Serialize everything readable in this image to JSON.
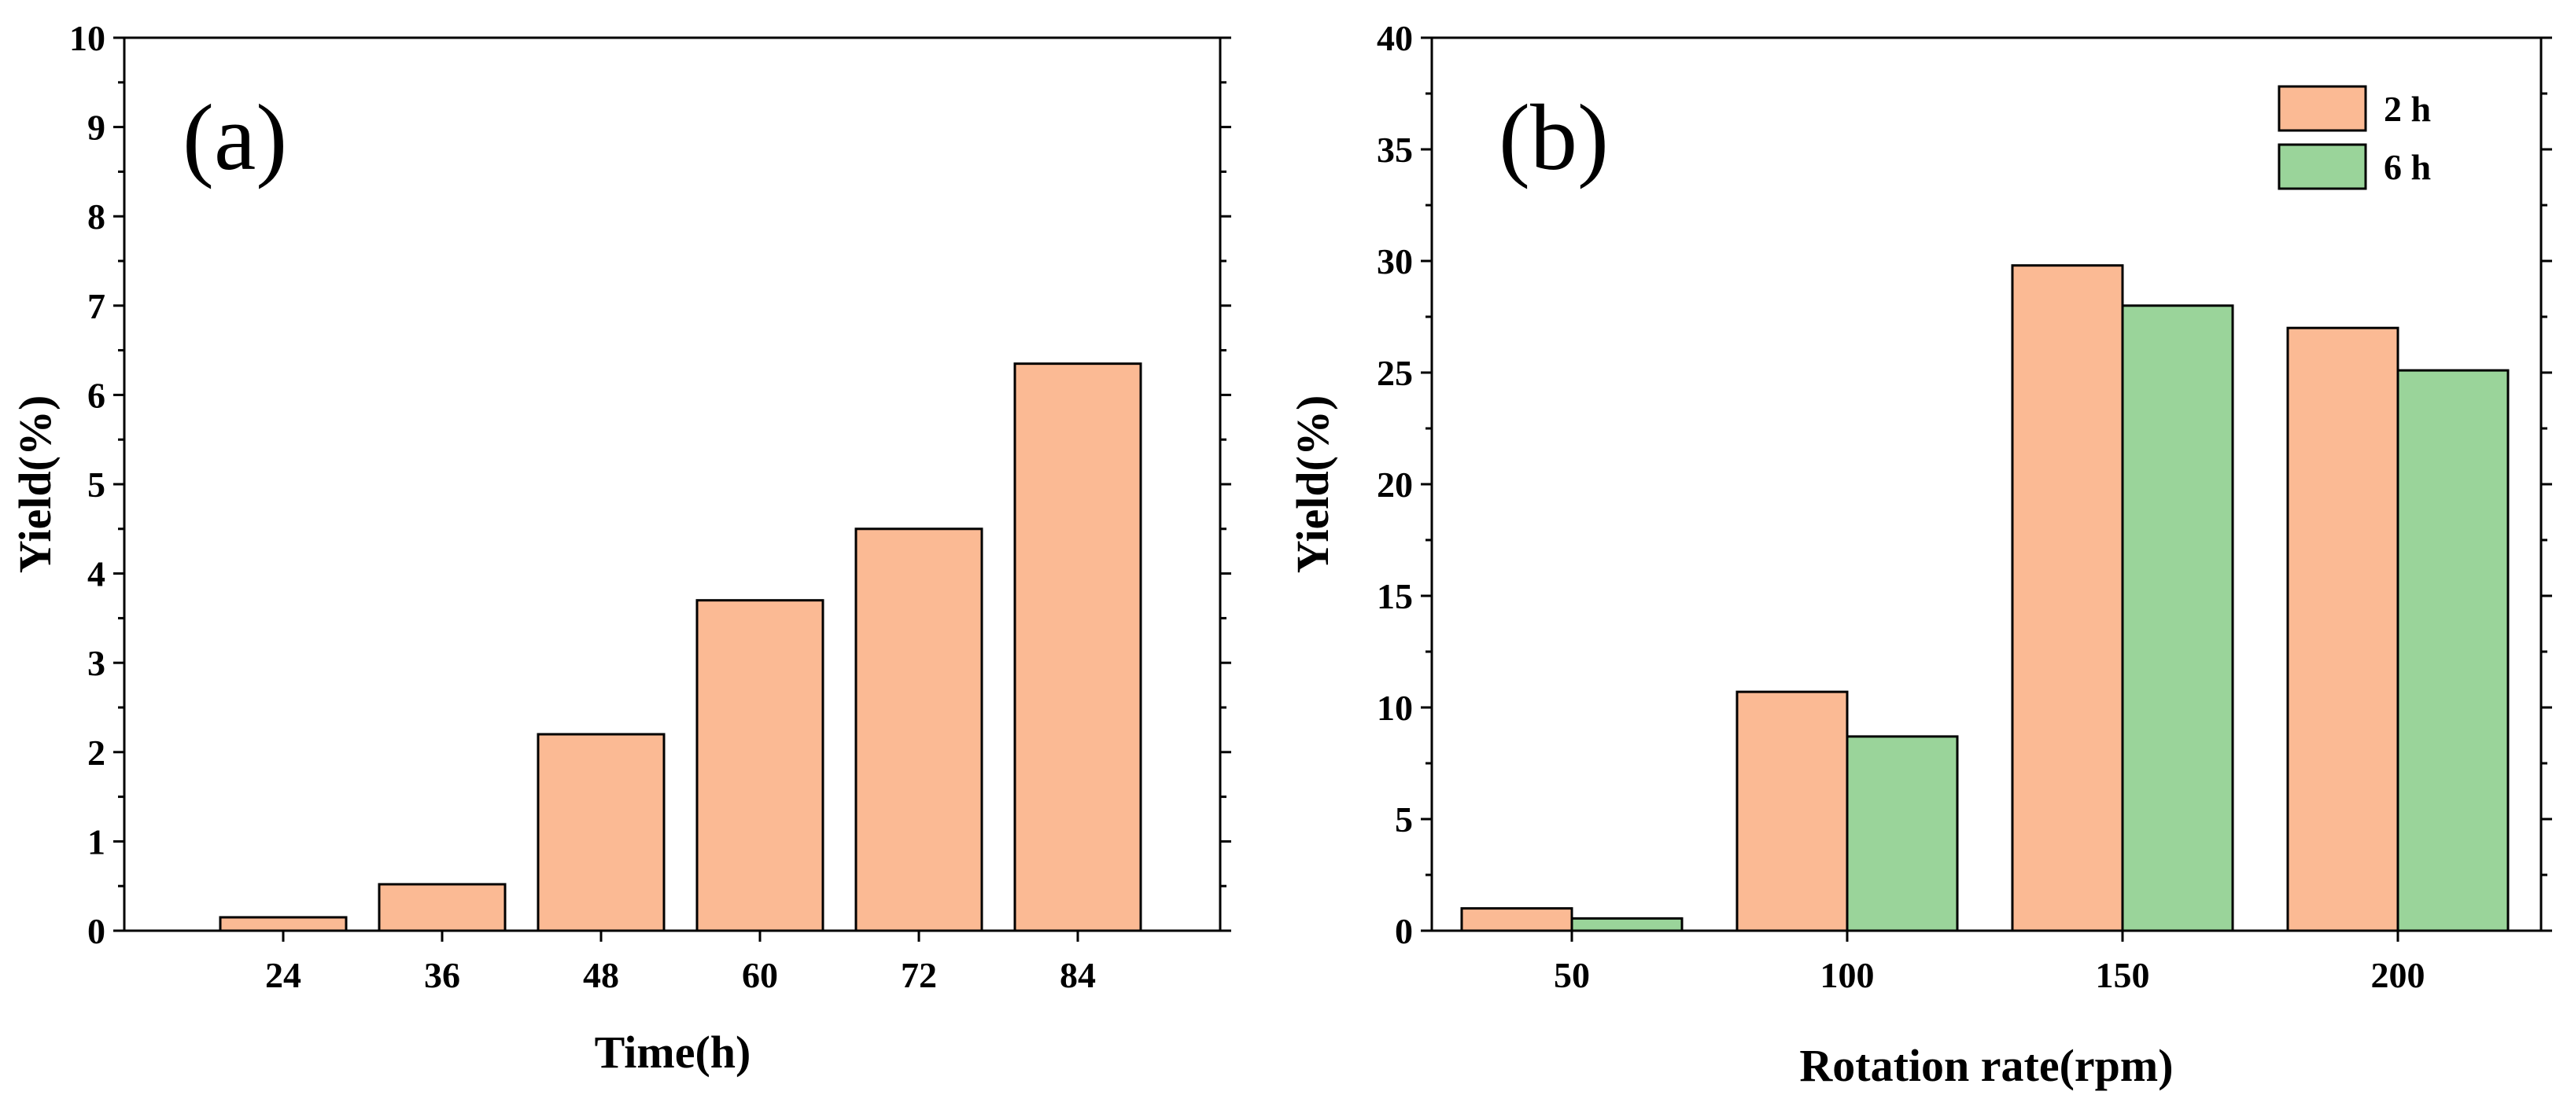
{
  "colors": {
    "orange": "#FBBA94",
    "green": "#9AD49A",
    "stroke": "#000000"
  },
  "chart_data": [
    {
      "type": "bar",
      "panel_label": "(a)",
      "title": "",
      "xlabel": "Time(h)",
      "ylabel": "Yield(%)",
      "categories": [
        "24",
        "36",
        "48",
        "60",
        "72",
        "84"
      ],
      "series": [
        {
          "name": "Yield",
          "color": "#FBBA94",
          "values": [
            0.15,
            0.52,
            2.2,
            3.7,
            4.5,
            6.35
          ]
        }
      ],
      "ylim": [
        0,
        10
      ],
      "yticks": [
        "0",
        "1",
        "2",
        "3",
        "4",
        "5",
        "6",
        "7",
        "8",
        "9",
        "10"
      ],
      "ytick_step": 1,
      "legend": null
    },
    {
      "type": "bar",
      "panel_label": "(b)",
      "title": "",
      "xlabel": "Rotation rate(rpm)",
      "ylabel": "Yield(%)",
      "categories": [
        "50",
        "100",
        "150",
        "200"
      ],
      "series": [
        {
          "name": "2 h",
          "color": "#FBBA94",
          "values": [
            1.0,
            10.7,
            29.8,
            27.0
          ]
        },
        {
          "name": "6 h",
          "color": "#9AD49A",
          "values": [
            0.55,
            8.7,
            28.0,
            25.1
          ]
        }
      ],
      "ylim": [
        0,
        40
      ],
      "yticks": [
        "0",
        "5",
        "10",
        "15",
        "20",
        "25",
        "30",
        "35",
        "40"
      ],
      "ytick_step": 5,
      "legend": "top-right"
    }
  ]
}
